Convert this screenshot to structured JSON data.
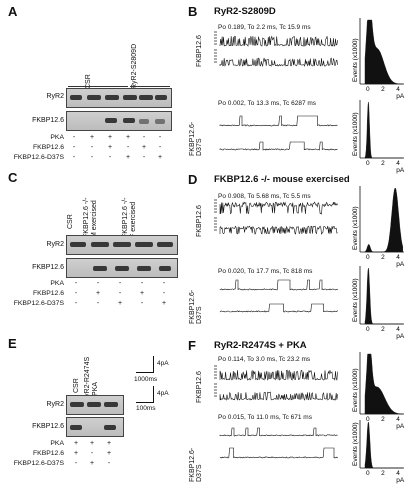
{
  "panels": {
    "A": {
      "letter": "A",
      "lanes": [
        "CSR",
        "RyR2-S2809D"
      ],
      "rows": [
        "RyR2",
        "FKBP12.6"
      ],
      "treat": [
        {
          "label": "PKA",
          "marks": [
            "-",
            "+",
            "+",
            "+",
            "-",
            "-"
          ]
        },
        {
          "label": "FKBP12.6",
          "marks": [
            "-",
            "-",
            "+",
            "-",
            "+",
            "-"
          ]
        },
        {
          "label": "FKBP12.6-D37S",
          "marks": [
            "-",
            "-",
            "-",
            "+",
            "-",
            "+"
          ]
        }
      ]
    },
    "B": {
      "letter": "B",
      "title": "RyR2-S2809D",
      "rec1": {
        "label": "FKBP12.6",
        "stats": "Po 0.189, To 2.2 ms, Tc 15.9 ms"
      },
      "rec2": {
        "label": "FKBP12.6-\nD37S",
        "stats": "Po 0.002, To 13.3 ms, Tc 6287 ms"
      }
    },
    "C": {
      "letter": "C",
      "lanes": [
        "CSR",
        "FKBP12.6 -/-\nM exercised",
        "FKBP12.6 -/-\nF exercised"
      ],
      "rows": [
        "RyR2",
        "FKBP12.6"
      ],
      "treat": [
        {
          "label": "PKA",
          "marks": [
            "-",
            "-",
            "-",
            "-",
            "-"
          ]
        },
        {
          "label": "FKBP12.6",
          "marks": [
            "-",
            "+",
            "-",
            "+",
            "-"
          ]
        },
        {
          "label": "FKBP12.6-D37S",
          "marks": [
            "-",
            "-",
            "+",
            "-",
            "+"
          ]
        }
      ]
    },
    "D": {
      "letter": "D",
      "title": "FKBP12.6 -/- mouse exercised",
      "rec1": {
        "label": "FKBP12.6",
        "stats": "Po 0.908, To 5.68 ms, Tc 5.5 ms"
      },
      "rec2": {
        "label": "FKBP12.6-\nD37S",
        "stats": "Po 0.020, To 17.7 ms, Tc 818 ms"
      }
    },
    "E": {
      "letter": "E",
      "lanes": [
        "CSR",
        "RyR2-R2474S\n+ PKA"
      ],
      "rows": [
        "RyR2",
        "FKBP12.6"
      ],
      "treat": [
        {
          "label": "PKA",
          "marks": [
            "+",
            "+",
            "+"
          ]
        },
        {
          "label": "FKBP12.6",
          "marks": [
            "+",
            "-",
            "+"
          ]
        },
        {
          "label": "FKBP12.6-D37S",
          "marks": [
            "-",
            "+",
            "-"
          ]
        }
      ],
      "scale": {
        "amp": "4pA",
        "t1": "1000ms",
        "t2": "100ms"
      }
    },
    "F": {
      "letter": "F",
      "title": "RyR2-R2474S + PKA",
      "rec1": {
        "label": "FKBP12.6",
        "stats": "Po 0.114, To 3.0 ms, Tc 23.2 ms"
      },
      "rec2": {
        "label": "FKBP12.6-\nD37S",
        "stats": "Po 0.015, To 11.0 ms, Tc 671 ms"
      }
    }
  },
  "histogram": {
    "ylabel": "Events (x1000)",
    "xlabel": "pA",
    "xticks": [
      "0",
      "2",
      "4"
    ]
  }
}
